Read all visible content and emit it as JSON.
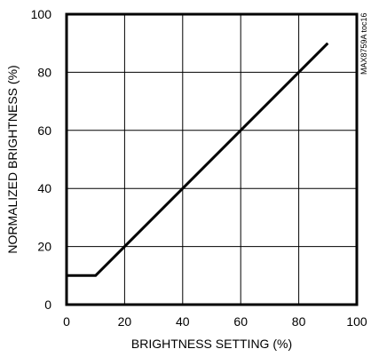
{
  "chart_data": {
    "type": "line",
    "title": "",
    "xlabel": "BRIGHTNESS SETTING (%)",
    "ylabel": "NORMALIZED BRIGHTNESS (%)",
    "xlim": [
      0,
      100
    ],
    "ylim": [
      0,
      100
    ],
    "xticks": [
      0,
      20,
      40,
      60,
      80,
      100
    ],
    "yticks": [
      0,
      20,
      40,
      60,
      80,
      100
    ],
    "grid": true,
    "series": [
      {
        "x": [
          0,
          10,
          90
        ],
        "y": [
          10,
          10,
          90
        ]
      }
    ],
    "side_note": "MAX8759A toc16",
    "colors": {
      "line": "#000000",
      "grid": "#000000",
      "frame": "#000000"
    }
  }
}
